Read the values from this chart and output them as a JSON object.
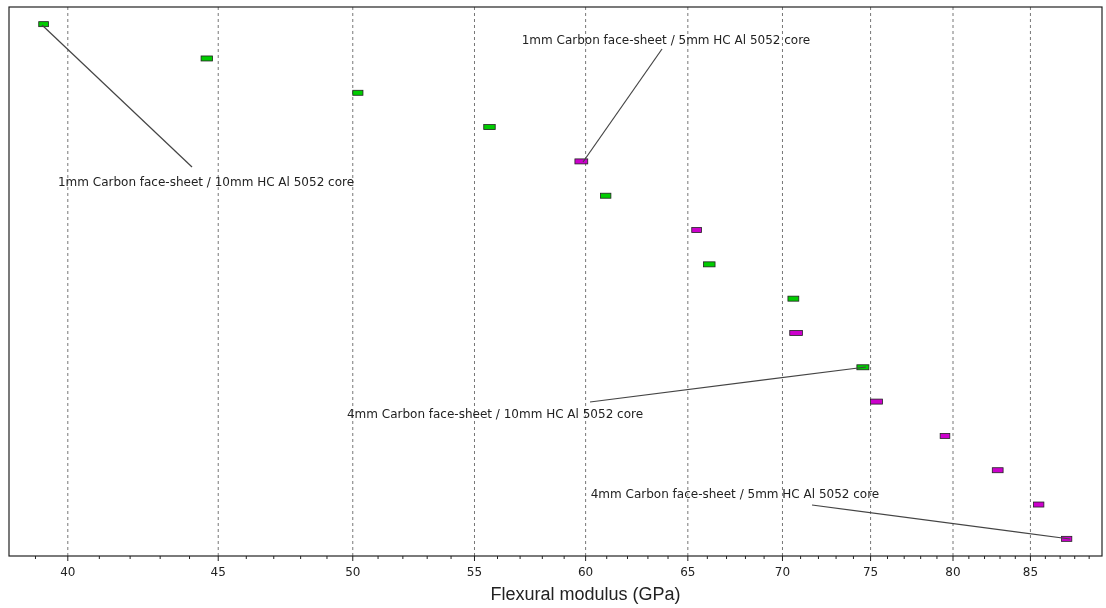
{
  "chart_data": {
    "type": "bar",
    "orientation": "horizontal",
    "xlabel": "Flexural modulus (GPa)",
    "categories": [
      null,
      null,
      null,
      null,
      null,
      null,
      null,
      null,
      null,
      null,
      null,
      null,
      null,
      null,
      null,
      null
    ],
    "base": [
      39.1,
      44.4,
      50.0,
      55.4,
      59.5,
      60.7,
      65.2,
      65.8,
      70.3,
      70.4,
      74.2,
      75.0,
      79.2,
      82.5,
      85.2,
      87.1
    ],
    "values": [
      0.3,
      0.4,
      0.4,
      0.5,
      0.6,
      0.5,
      0.5,
      0.6,
      0.6,
      0.7,
      0.7,
      0.7,
      0.6,
      0.7,
      0.7,
      0.7
    ],
    "colors": [
      "#00cc00",
      "#00cc00",
      "#00cc00",
      "#00cc00",
      "#cc00cc",
      "#00cc00",
      "#cc00cc",
      "#00cc00",
      "#00cc00",
      "#cc00cc",
      "#00cc00",
      "#cc00cc",
      "#cc00cc",
      "#cc00cc",
      "#cc00cc",
      "#cc00cc"
    ],
    "log": "x",
    "xlim": [
      38.2,
      89.9
    ],
    "xticks": [
      {
        "value": 39,
        "label": null
      },
      40,
      {
        "value": 41,
        "label": null
      },
      {
        "value": 42,
        "label": null
      },
      {
        "value": 43,
        "label": null
      },
      {
        "value": 44,
        "label": null
      },
      45,
      {
        "value": 46,
        "label": null
      },
      {
        "value": 47,
        "label": null
      },
      {
        "value": 48,
        "label": null
      },
      {
        "value": 49,
        "label": null
      },
      50,
      {
        "value": 51,
        "label": null
      },
      {
        "value": 52,
        "label": null
      },
      {
        "value": 53,
        "label": null
      },
      {
        "value": 54,
        "label": null
      },
      55,
      {
        "value": 56,
        "label": null
      },
      {
        "value": 57,
        "label": null
      },
      {
        "value": 58,
        "label": null
      },
      {
        "value": 59,
        "label": null
      },
      60,
      {
        "value": 61,
        "label": null
      },
      {
        "value": 62,
        "label": null
      },
      {
        "value": 63,
        "label": null
      },
      {
        "value": 64,
        "label": null
      },
      65,
      {
        "value": 66,
        "label": null
      },
      {
        "value": 67,
        "label": null
      },
      {
        "value": 68,
        "label": null
      },
      {
        "value": 69,
        "label": null
      },
      70,
      {
        "value": 71,
        "label": null
      },
      {
        "value": 72,
        "label": null
      },
      {
        "value": 73,
        "label": null
      },
      {
        "value": 74,
        "label": null
      },
      75,
      {
        "value": 76,
        "label": null
      },
      {
        "value": 77,
        "label": null
      },
      {
        "value": 78,
        "label": null
      },
      {
        "value": 79,
        "label": null
      },
      80,
      {
        "value": 81,
        "label": null
      },
      {
        "value": 82,
        "label": null
      },
      {
        "value": 83,
        "label": null
      },
      {
        "value": 84,
        "label": null
      },
      85,
      {
        "value": 86,
        "label": null
      },
      {
        "value": 87,
        "label": null
      },
      {
        "value": 88,
        "label": null
      },
      {
        "value": 89,
        "label": null
      }
    ],
    "grid": "x",
    "tick_labels": "x",
    "annotations": [
      "1mm Carbon face-sheet / 10mm HC Al 5052 core",
      "1mm Carbon face-sheet / 5mm HC Al 5052 core",
      "4mm Carbon face-sheet / 10mm HC Al 5052 core",
      "4mm Carbon face-sheet / 5mm HC Al 5052 core"
    ]
  }
}
